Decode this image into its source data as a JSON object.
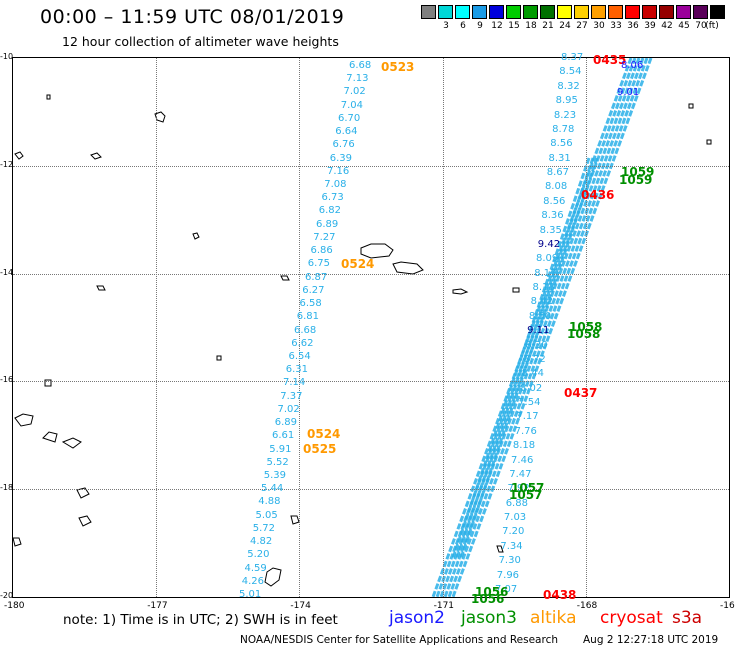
{
  "header": {
    "title": "00:00 – 11:59 UTC 08/01/2019",
    "subtitle": "12 hour collection of altimeter wave heights"
  },
  "scale": {
    "unit_label": "(ft)",
    "bins": [
      {
        "label": "",
        "color": "#7f7f7f"
      },
      {
        "label": "3",
        "color": "#00d7d7"
      },
      {
        "label": "6",
        "color": "#00ffff"
      },
      {
        "label": "9",
        "color": "#1a9be6"
      },
      {
        "label": "12",
        "color": "#0000dc"
      },
      {
        "label": "15",
        "color": "#00cc00"
      },
      {
        "label": "18",
        "color": "#009b00"
      },
      {
        "label": "21",
        "color": "#007000"
      },
      {
        "label": "24",
        "color": "#ffff00"
      },
      {
        "label": "27",
        "color": "#ffd000"
      },
      {
        "label": "30",
        "color": "#ffa000"
      },
      {
        "label": "33",
        "color": "#ff6000"
      },
      {
        "label": "36",
        "color": "#ff0000"
      },
      {
        "label": "39",
        "color": "#c80000"
      },
      {
        "label": "42",
        "color": "#960000"
      },
      {
        "label": "45",
        "color": "#9b009b"
      },
      {
        "label": "70",
        "color": "#5a005a"
      },
      {
        "label": "",
        "color": "#000000"
      }
    ]
  },
  "axes": {
    "lon_ticks": [
      "-180",
      "-177",
      "-174",
      "-171",
      "-168",
      "-16"
    ],
    "lat_ticks": [
      "-10",
      "-12",
      "-14",
      "-16",
      "-18",
      "-20"
    ]
  },
  "colors": {
    "jason2": "#1a1aff",
    "jason3": "#008f00",
    "altika": "#ff9900",
    "cryosat": "#ff0000",
    "s3a": "#cc0000",
    "swh_text": "#2ab0e8"
  },
  "track_altika": {
    "values": [
      "6.68",
      "7.13",
      "7.02",
      "7.04",
      "6.70",
      "6.64",
      "6.76",
      "6.39",
      "7.16",
      "7.08",
      "6.73",
      "6.82",
      "6.89",
      "7.27",
      "6.86",
      "6.75",
      "6.87",
      "6.27",
      "6.58",
      "6.81",
      "6.68",
      "6.62",
      "6.54",
      "6.31",
      "7.14",
      "7.37",
      "7.02",
      "6.89",
      "6.61",
      "5.91",
      "5.52",
      "5.39",
      "5.44",
      "4.88",
      "5.05",
      "5.72",
      "4.82",
      "5.20",
      "4.59",
      "4.26",
      "5.01"
    ],
    "times": [
      "0523",
      "0524",
      "0524",
      "0525"
    ]
  },
  "track_s3a": {
    "values": [
      "8.37",
      "8.54",
      "8.32",
      "8.95",
      "8.23",
      "8.78",
      "8.56",
      "8.31",
      "8.67",
      "8.08",
      "8.56",
      "8.36",
      "8.35",
      "9.42",
      "8.09",
      "8.17",
      "8.13",
      "8.42",
      "8.50",
      "9.11",
      "8.30",
      "8.72",
      "8.44",
      "8.02",
      "7.54",
      "7.17",
      "7.76",
      "8.18",
      "7.46",
      "7.47",
      "7.92",
      "6.88",
      "7.03",
      "7.20",
      "7.34",
      "7.30",
      "7.96",
      "7.07"
    ],
    "highlight": {
      "9.42": "#00008b",
      "9.11": "#00008b"
    },
    "times": [
      "0435",
      "0436",
      "0437",
      "0438"
    ]
  },
  "track_j3_times": [
    "1059",
    "1059",
    "1058",
    "1058",
    "1057",
    "1057",
    "1056",
    "1056"
  ],
  "track_j2_corner": {
    "values": [
      "8.06",
      "9.01"
    ]
  },
  "footer": {
    "note": "note:  1) Time is in UTC;  2) SWH is in feet",
    "legend": [
      "jason2",
      "jason3",
      "altika",
      "cryosat",
      "s3a"
    ],
    "credit": "NOAA/NESDIS Center for Satellite Applications and Research",
    "stamp": "Aug  2 12:27:18 UTC 2019"
  }
}
